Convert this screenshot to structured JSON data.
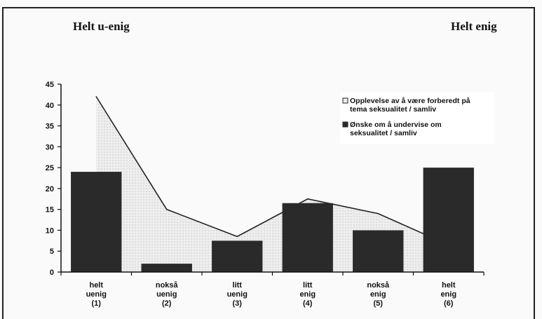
{
  "header": {
    "left_label": "Helt u-enig",
    "right_label": "Helt enig"
  },
  "chart_data": {
    "type": "bar",
    "categories": [
      [
        "helt",
        "uenig",
        "(1)"
      ],
      [
        "nokså",
        "uenig",
        "(2)"
      ],
      [
        "litt",
        "uenig",
        "(3)"
      ],
      [
        "litt",
        "enig",
        "(4)"
      ],
      [
        "nokså",
        "enig",
        "(5)"
      ],
      [
        "helt",
        "enig",
        "(6)"
      ]
    ],
    "series": [
      {
        "name": "Opplevelse av å være forberedt på tema seksualitet / samliv",
        "type": "area",
        "values": [
          42,
          15,
          8.5,
          17.5,
          14,
          6.5
        ],
        "color": "#e6e6e6"
      },
      {
        "name": "Ønske om å  undervise om seksualitet / samliv",
        "type": "bar",
        "values": [
          24,
          2,
          7.5,
          16.5,
          10,
          25
        ],
        "color": "#2a2a2a"
      }
    ],
    "ylim": [
      0,
      45
    ],
    "yticks": [
      0,
      5,
      10,
      15,
      20,
      25,
      30,
      35,
      40,
      45
    ],
    "grid": false,
    "legend_position": "top-right"
  }
}
